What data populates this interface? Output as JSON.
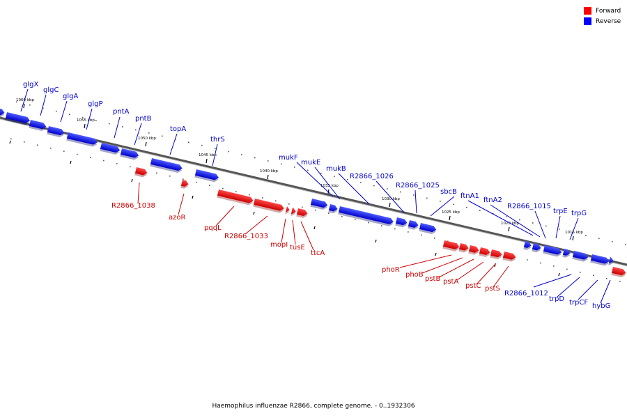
{
  "colors": {
    "forward": "#ff0000",
    "reverse": "#0000ff",
    "forward_label": "#cc0000",
    "reverse_label": "#0000cc",
    "backbone": "#888888"
  },
  "legend": [
    {
      "label": "Forward",
      "color": "#ff0000"
    },
    {
      "label": "Reverse",
      "color": "#0000ff"
    }
  ],
  "caption": "Haemophilus influenzae R2866, complete genome. - 0..1932306",
  "scale_labels": [
    "1060 kbp",
    "1055 kbp",
    "1050 kbp",
    "1045 kbp",
    "1040 kbp",
    "1035 kbp",
    "1030 kbp",
    "1025 kbp",
    "1020 kbp",
    "1015 kbp"
  ],
  "reverse_genes": [
    "glgX",
    "glgC",
    "glgA",
    "glgP",
    "pntA",
    "pntB",
    "topA",
    "thrS",
    "mukF",
    "mukE",
    "mukB",
    "R2866_1026",
    "R2866_1025",
    "sbcB",
    "ftnA1",
    "ftnA2",
    "R2866_1015",
    "trpE",
    "trpG",
    "R2866_1012",
    "trpD",
    "trpCF",
    "hybG"
  ],
  "forward_genes": [
    "R2866_1038",
    "azoR",
    "pqqL",
    "R2866_1033",
    "mopI",
    "tusE",
    "ttcA",
    "phoR",
    "phoB",
    "pstB",
    "pstA",
    "pstC",
    "pstS"
  ]
}
